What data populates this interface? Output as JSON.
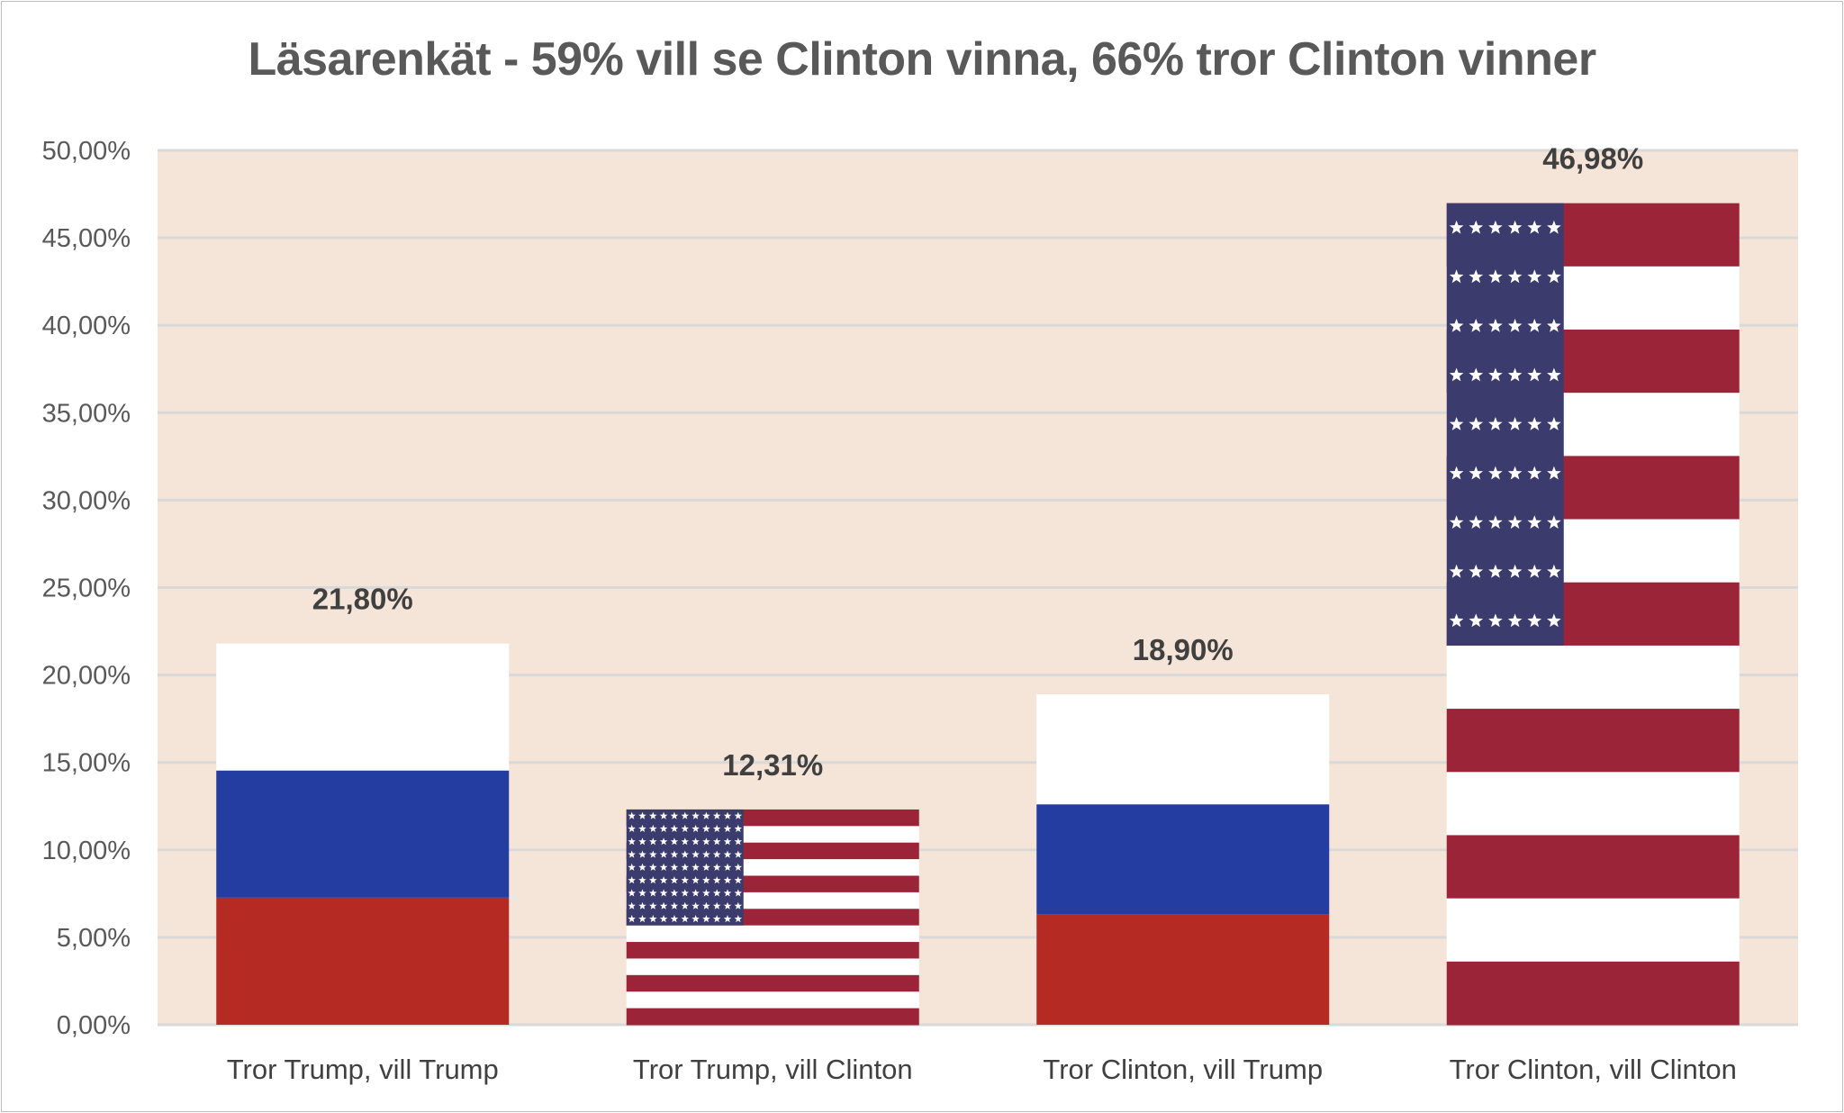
{
  "colors": {
    "plot_bg": "#f5e4d8",
    "grid": "#d9d9d9",
    "russia_white": "#ffffff",
    "russia_blue": "#233da1",
    "russia_red": "#b52b24",
    "us_red": "#9b2438",
    "us_white": "#ffffff",
    "us_blue": "#3c3b6e"
  },
  "chart_data": {
    "type": "bar",
    "title": "Läsarenkät - 59% vill se Clinton vinna, 66% tror Clinton vinner",
    "xlabel": "",
    "ylabel": "",
    "ylim": [
      0,
      50
    ],
    "ytick_values": [
      0,
      5,
      10,
      15,
      20,
      25,
      30,
      35,
      40,
      45,
      50
    ],
    "ytick_labels": [
      "0,00%",
      "5,00%",
      "10,00%",
      "15,00%",
      "20,00%",
      "25,00%",
      "30,00%",
      "35,00%",
      "40,00%",
      "45,00%",
      "50,00%"
    ],
    "grid": true,
    "legend": "none",
    "categories": [
      "Tror Trump, vill Trump",
      "Tror Trump, vill Clinton",
      "Tror Clinton, vill Trump",
      "Tror Clinton, vill Clinton"
    ],
    "values": [
      21.8,
      12.31,
      18.9,
      46.98
    ],
    "data_labels": [
      "21,80%",
      "12,31%",
      "18,90%",
      "46,98%"
    ],
    "bar_fill": [
      "russia-flag-icon",
      "us-flag-icon",
      "russia-flag-icon",
      "us-flag-icon"
    ]
  }
}
